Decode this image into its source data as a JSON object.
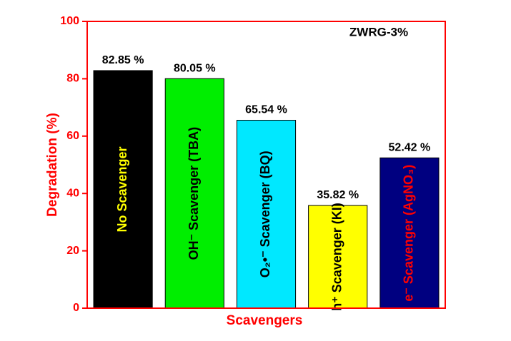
{
  "chart_data": {
    "type": "bar",
    "annotation": "ZWRG-3%",
    "x_label": "Scavengers",
    "y_label": "Degradation (%)",
    "categories": [
      "No Scavenger",
      "OH⁻ Scavenger (TBA)",
      "O₂•⁻ Scavenger (BQ)",
      "h⁺ Scavenger (KI)",
      "e⁻ Scavenger (AgNO₃)"
    ],
    "values": [
      82.85,
      80.05,
      65.54,
      35.82,
      52.42
    ],
    "value_labels": [
      "82.85 %",
      "80.05 %",
      "65.54 %",
      "35.82 %",
      "52.42 %"
    ],
    "colors": [
      "#000000",
      "#00ee00",
      "#00e8ff",
      "#ffff00",
      "#000080"
    ],
    "label_colors": [
      "#ffff00",
      "#000000",
      "#000000",
      "#000000",
      "#ff0000"
    ],
    "axis_color": "#ff0000",
    "ylim": [
      0,
      100
    ],
    "yticks": [
      0,
      20,
      40,
      60,
      80,
      100
    ]
  }
}
